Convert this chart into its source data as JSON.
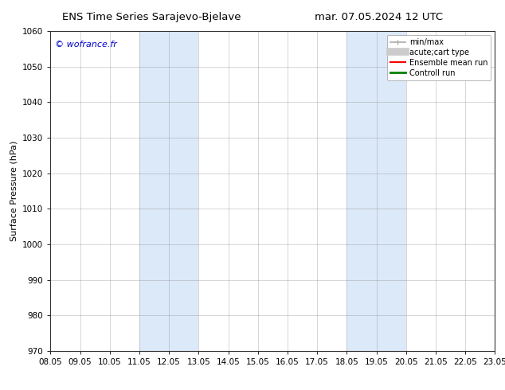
{
  "title_left": "ENS Time Series Sarajevo-Bjelave",
  "title_right": "mar. 07.05.2024 12 UTC",
  "ylabel": "Surface Pressure (hPa)",
  "watermark": "© wofrance.fr",
  "watermark_color": "#0000cc",
  "ylim": [
    970,
    1060
  ],
  "yticks": [
    970,
    980,
    990,
    1000,
    1010,
    1020,
    1030,
    1040,
    1050,
    1060
  ],
  "xtick_labels": [
    "08.05",
    "09.05",
    "10.05",
    "11.05",
    "12.05",
    "13.05",
    "14.05",
    "15.05",
    "16.05",
    "17.05",
    "18.05",
    "19.05",
    "20.05",
    "21.05",
    "22.05",
    "23.05"
  ],
  "xtick_positions": [
    0,
    1,
    2,
    3,
    4,
    5,
    6,
    7,
    8,
    9,
    10,
    11,
    12,
    13,
    14,
    15
  ],
  "shaded_regions": [
    {
      "xstart": 3,
      "xend": 5,
      "color": "#dce9f8"
    },
    {
      "xstart": 10,
      "xend": 12,
      "color": "#dce9f8"
    }
  ],
  "legend_entries": [
    {
      "label": "min/max",
      "color": "#aaaaaa",
      "lw": 1.2,
      "ls": "-",
      "type": "minmax"
    },
    {
      "label": "acute;cart type",
      "color": "#cccccc",
      "lw": 7,
      "ls": "-",
      "type": "thick"
    },
    {
      "label": "Ensemble mean run",
      "color": "#ff0000",
      "lw": 1.5,
      "ls": "-",
      "type": "line"
    },
    {
      "label": "Controll run",
      "color": "#008000",
      "lw": 2.0,
      "ls": "-",
      "type": "line"
    }
  ],
  "background_color": "#ffffff",
  "grid_color": "#888888",
  "title_fontsize": 9.5,
  "tick_fontsize": 7.5,
  "ylabel_fontsize": 8,
  "watermark_fontsize": 8,
  "legend_fontsize": 7
}
